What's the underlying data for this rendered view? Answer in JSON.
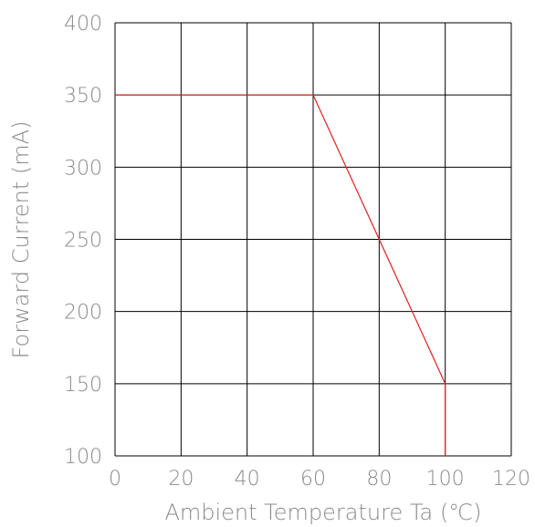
{
  "chart_data": {
    "type": "line",
    "title": "",
    "xlabel": "Ambient Temperature Ta (℃)",
    "ylabel": "Forward Current (mA)",
    "xlim": [
      0,
      120
    ],
    "ylim": [
      100,
      400
    ],
    "x_ticks": [
      "0",
      "20",
      "40",
      "60",
      "80",
      "100",
      "120"
    ],
    "y_ticks": [
      "100",
      "150",
      "200",
      "250",
      "300",
      "350",
      "400"
    ],
    "grid": true,
    "series": [
      {
        "color": "#e02020",
        "points": [
          {
            "x": 0,
            "y": 350
          },
          {
            "x": 60,
            "y": 350
          },
          {
            "x": 100,
            "y": 150
          },
          {
            "x": 100,
            "y": 100
          }
        ]
      }
    ]
  }
}
